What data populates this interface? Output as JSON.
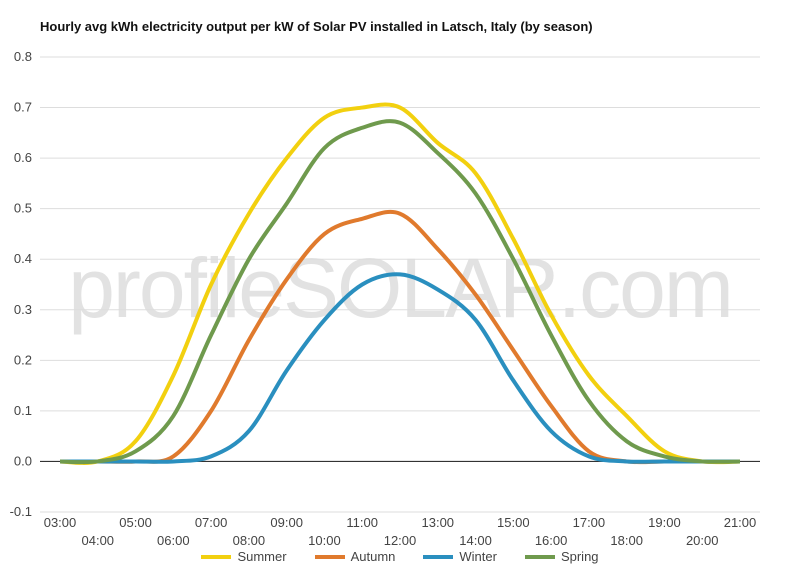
{
  "title": "Hourly avg kWh electricity output per kW of Solar PV installed in Latsch, Italy (by season)",
  "watermark": "profileSOLAR.com",
  "chart_data": {
    "type": "line",
    "title": "Hourly avg kWh electricity output per kW of Solar PV installed in Latsch, Italy (by season)",
    "x": [
      "03:00",
      "04:00",
      "05:00",
      "06:00",
      "07:00",
      "08:00",
      "09:00",
      "10:00",
      "11:00",
      "12:00",
      "13:00",
      "14:00",
      "15:00",
      "16:00",
      "17:00",
      "18:00",
      "19:00",
      "20:00",
      "21:00"
    ],
    "ylim": [
      -0.1,
      0.8
    ],
    "yticks": [
      -0.1,
      0.0,
      0.1,
      0.2,
      0.3,
      0.4,
      0.5,
      0.6,
      0.7,
      0.8
    ],
    "ytick_labels": [
      "-0.1",
      "0.0",
      "0.1",
      "0.2",
      "0.3",
      "0.4",
      "0.5",
      "0.6",
      "0.7",
      "0.8"
    ],
    "grid": true,
    "legend_position": "bottom",
    "series": [
      {
        "name": "Summer",
        "color": "#f2d00f",
        "values": [
          0,
          0.0,
          0.04,
          0.17,
          0.35,
          0.49,
          0.6,
          0.68,
          0.7,
          0.7,
          0.63,
          0.57,
          0.44,
          0.29,
          0.17,
          0.09,
          0.02,
          0,
          0
        ]
      },
      {
        "name": "Autumn",
        "color": "#e07a2d",
        "values": [
          0,
          0,
          0,
          0.01,
          0.1,
          0.24,
          0.36,
          0.45,
          0.48,
          0.49,
          0.42,
          0.33,
          0.22,
          0.11,
          0.02,
          0,
          0,
          0,
          0
        ]
      },
      {
        "name": "Winter",
        "color": "#2a8fbf",
        "values": [
          0,
          0,
          0,
          0,
          0.01,
          0.06,
          0.18,
          0.28,
          0.35,
          0.37,
          0.34,
          0.28,
          0.16,
          0.06,
          0.01,
          0,
          0,
          0,
          0
        ]
      },
      {
        "name": "Spring",
        "color": "#6f9a4d",
        "values": [
          0,
          0,
          0.02,
          0.09,
          0.25,
          0.4,
          0.51,
          0.62,
          0.66,
          0.67,
          0.61,
          0.53,
          0.4,
          0.25,
          0.12,
          0.04,
          0.01,
          0,
          0
        ]
      }
    ]
  }
}
